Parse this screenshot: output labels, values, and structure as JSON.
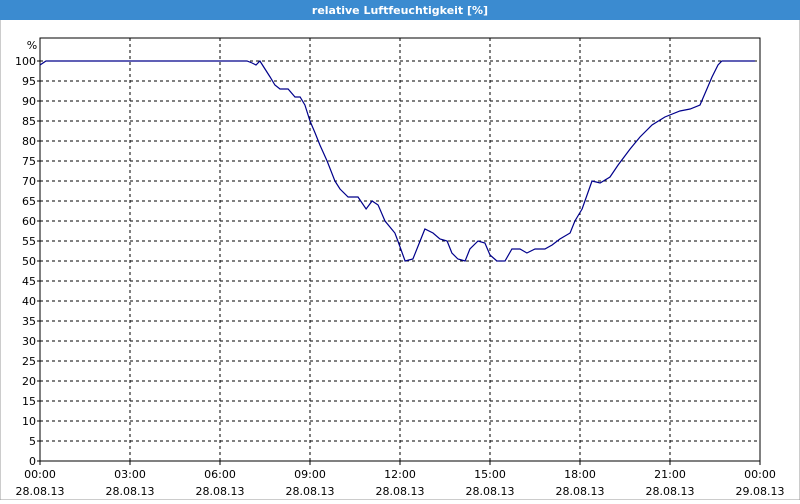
{
  "chart_data": {
    "type": "line",
    "title": "relative Luftfeuchtigkeit [%]",
    "y_unit": "%",
    "x": [
      0,
      0.2,
      6.9,
      7.07,
      7.2,
      7.33,
      7.5,
      7.67,
      7.83,
      8.0,
      8.27,
      8.5,
      8.67,
      8.83,
      9.0,
      9.17,
      9.33,
      9.57,
      9.83,
      10.0,
      10.27,
      10.6,
      10.87,
      11.07,
      11.27,
      11.5,
      11.83,
      11.93,
      12.17,
      12.43,
      12.67,
      12.83,
      13.1,
      13.33,
      13.57,
      13.73,
      13.93,
      14.17,
      14.33,
      14.6,
      14.83,
      15.0,
      15.23,
      15.5,
      15.73,
      16.0,
      16.23,
      16.5,
      16.83,
      17.07,
      17.33,
      17.67,
      17.83,
      18.07,
      18.4,
      18.67,
      19.0,
      19.27,
      19.67,
      20.0,
      20.4,
      20.83,
      21.33,
      21.67,
      22.0,
      22.23,
      22.4,
      22.6,
      22.73,
      23.83
    ],
    "series": [
      {
        "name": "relative Luftfeuchtigkeit",
        "color": "#00008b",
        "values": [
          99,
          100,
          100,
          99.5,
          99,
          100,
          98,
          96,
          94,
          93,
          93,
          91,
          91,
          89,
          85,
          82,
          79,
          75,
          70,
          68,
          66,
          66,
          63,
          65,
          64,
          60,
          57,
          55,
          50,
          50.5,
          55,
          58,
          57,
          55.5,
          55,
          52,
          50.5,
          50,
          53,
          55,
          54.5,
          51.5,
          50,
          50,
          53,
          53,
          52,
          53,
          53,
          54,
          55.5,
          57,
          60,
          63,
          70,
          69.5,
          71,
          74,
          78,
          81,
          84,
          86,
          87.5,
          88,
          89,
          93,
          96,
          99,
          100,
          100
        ]
      }
    ],
    "xlim": [
      0,
      24
    ],
    "xticks": [
      {
        "value": 0,
        "label": "00:00",
        "date": "28.08.13"
      },
      {
        "value": 3,
        "label": "03:00",
        "date": "28.08.13"
      },
      {
        "value": 6,
        "label": "06:00",
        "date": "28.08.13"
      },
      {
        "value": 9,
        "label": "09:00",
        "date": "28.08.13"
      },
      {
        "value": 12,
        "label": "12:00",
        "date": "28.08.13"
      },
      {
        "value": 15,
        "label": "15:00",
        "date": "28.08.13"
      },
      {
        "value": 18,
        "label": "18:00",
        "date": "28.08.13"
      },
      {
        "value": 21,
        "label": "21:00",
        "date": "28.08.13"
      },
      {
        "value": 24,
        "label": "00:00",
        "date": "29.08.13"
      }
    ],
    "ylim": [
      0,
      100
    ],
    "yticks": [
      0,
      5,
      10,
      15,
      20,
      25,
      30,
      35,
      40,
      45,
      50,
      55,
      60,
      65,
      70,
      75,
      80,
      85,
      90,
      95,
      100
    ],
    "grid": true
  }
}
